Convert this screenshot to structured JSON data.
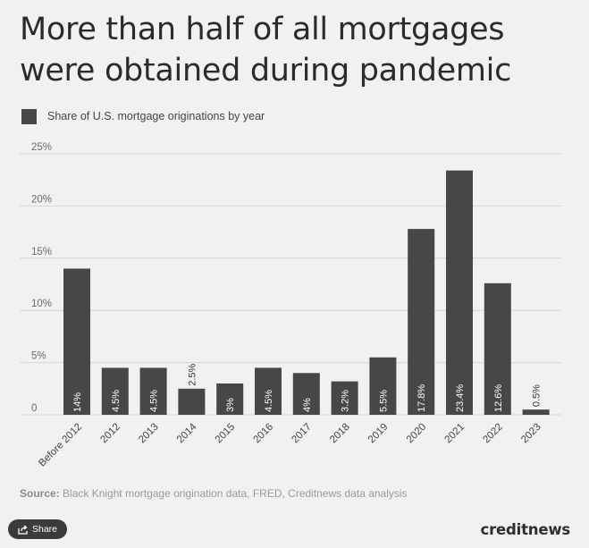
{
  "title": "More than half of all mortgages were obtained during pandemic",
  "legend": {
    "label": "Share of U.S. mortgage originations by year"
  },
  "source": {
    "prefix": "Source:",
    "text": "Black Knight mortgage origination data, FRED, Creditnews data analysis"
  },
  "share_button": {
    "label": "Share",
    "icon": "share-icon"
  },
  "brand": "creditnews",
  "colors": {
    "bar": "#474747",
    "background": "#f1f1ef",
    "grid": "#d6d6d4"
  },
  "chart_data": {
    "type": "bar",
    "categories": [
      "Before 2012",
      "2012",
      "2013",
      "2014",
      "2015",
      "2016",
      "2017",
      "2018",
      "2019",
      "2020",
      "2021",
      "2022",
      "2023"
    ],
    "values": [
      14,
      4.5,
      4.5,
      2.5,
      3,
      4.5,
      4,
      3.2,
      5.5,
      17.8,
      23.4,
      12.6,
      0.5
    ],
    "value_labels": [
      "14%",
      "4.5%",
      "4.5%",
      "2.5%",
      "3%",
      "4.5%",
      "4%",
      "3.2%",
      "5.5%",
      "17.8%",
      "23.4%",
      "12.6%",
      "0.5%"
    ],
    "series": [
      {
        "name": "Share of U.S. mortgage originations by year",
        "values": [
          14,
          4.5,
          4.5,
          2.5,
          3,
          4.5,
          4,
          3.2,
          5.5,
          17.8,
          23.4,
          12.6,
          0.5
        ]
      }
    ],
    "yticks": [
      0,
      5,
      10,
      15,
      20,
      25
    ],
    "ytick_labels": [
      "0",
      "5%",
      "10%",
      "15%",
      "20%",
      "25%"
    ],
    "ylim": [
      0,
      25
    ],
    "xlabel": "",
    "ylabel": "",
    "grid": true,
    "legend_position": "top-left"
  }
}
